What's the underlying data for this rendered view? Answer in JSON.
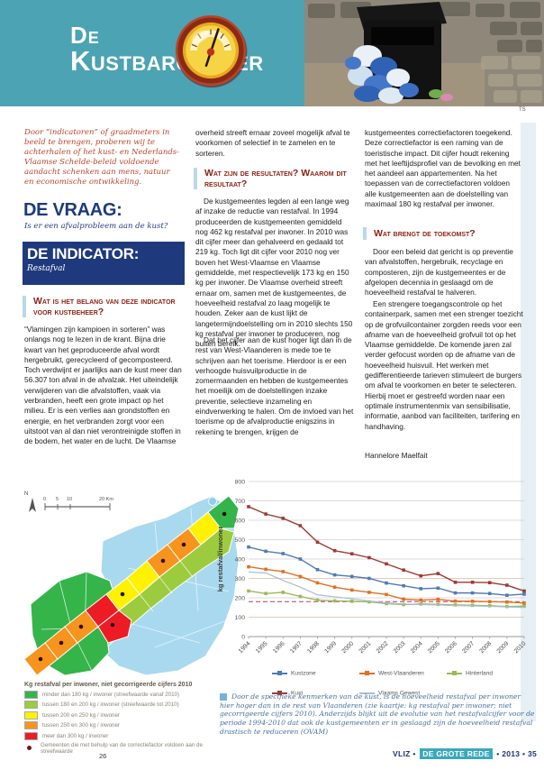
{
  "header": {
    "title_top": "De",
    "title_bottom": "Kustbarometer",
    "teal_color": "#4ba3b3",
    "photo_credit": "TS"
  },
  "intro_text": "Door “indicatoren” of graadmeters in beeld te brengen, proberen wij te achterhalen of het kust- en Nederlands-Vlaamse Schelde-beleid voldoende aandacht schenken aan mens, natuur en economische ontwikkeling.",
  "vraag": {
    "heading": "DE VRAAG:",
    "question": "Is er een afvalprobleem aan de kust?"
  },
  "indicator": {
    "heading": "DE INDICATOR:",
    "value": "Restafval"
  },
  "col1": {
    "section_heading": "Wat is het belang van deze indicator voor kustbeheer?",
    "body": "“Vlamingen zijn kampioen in sorteren” was onlangs nog te lezen in de krant. Bijna drie kwart van het geproduceerde afval wordt hergebruikt, gerecycleerd of gecomposteerd. Toch verdwijnt er jaarlijks aan de kust meer dan 56.307 ton afval in de afvalzak. Het uiteindelijk verwijderen van die afvalstoffen, vaak via verbranden, heeft een grote impact op het milieu. Er is een verlies aan grondstoffen en energie, en het verbranden zorgt voor een uitstoot van al dan niet verontreinigde stoffen in de bodem, het water en de lucht. De Vlaamse"
  },
  "col2": {
    "intro_continuation": "overheid streeft ernaar zoveel mogelijk afval te voorkomen of selectief in te zamelen en te sorteren.",
    "section_heading": "Wat zijn de resultaten? Waarom dit resultaat?",
    "para1": "De kustgemeentes legden al een lange weg af inzake de reductie van restafval. In 1994 produceerden de kustgemeenten gemiddeld nog 462 kg restafval per inwoner. In 2010 was dit cijfer meer dan gehalveerd en gedaald tot 219 kg. Toch ligt dit cijfer voor 2010 nog ver boven het West-Vlaamse en Vlaamse gemiddelde, met respectievelijk 173 kg en 150 kg per inwoner. De Vlaamse overheid streeft ernaar om, samen met de kustgemeentes, de hoeveelheid restafval zo laag mogelijk te houden. Zeker aan de kust lijkt de langetermijndoelstelling om in 2010 slechts 150 kg restafval per inwoner te produceren, nog buiten bereik.",
    "para2": "Dat het cijfer aan de kust hoger ligt dan in de rest van West-Vlaanderen is mede toe te schrijven aan het toerisme. Hierdoor is er een verhoogde huisvuilproductie in de zomermaanden en hebben de kustgemeentes het moeilijk om de doelstellingen inzake preventie, selectieve inzameling en eindverwerking te halen. Om de invloed van het toerisme op de afvalproductie enigszins in rekening te brengen, krijgen de"
  },
  "col3": {
    "para1": "kustgemeentes correctiefactoren toegekend. Deze correctiefactor is een raming van de toeristische impact. Dit cijfer houdt rekening met het leeftijdsprofiel van de bevolking en met het aandeel aan appartementen. Na het toepassen van de correctiefactoren voldoen alle kustgemeenten aan de doelstelling van maximaal 180 kg restafval per inwoner.",
    "section_heading": "Wat brengt de toekomst?",
    "para2": "Door een beleid dat gericht is op preventie van afvalstoffen, hergebruik, recyclage en composteren, zijn de kustgemeentes er de afgelopen decennia in geslaagd om de hoeveelheid restafval te halveren.",
    "para3": "Een strengere toegangscontrole op het containerpark, samen met een strenger toezicht op de grofvuilcontainer zorgden reeds voor een afname van de hoeveelheid grofvuil tot op het Vlaamse gemiddelde. De komende jaren zal verder gefocust worden op de afname van de hoeveelheid huisvuil. Het werken met gedifferentieerde tarieven stimuleert de burgers om afval te voorkomen en beter te selecteren. Hierbij moet er gestreefd worden naar een optimale instrumentenmix van sensibilisatie, informatie, aanbod van faciliteiten, tarifering en handhaving.",
    "author": "Hannelore Maelfait"
  },
  "map": {
    "north_label": "N",
    "scale_ticks": [
      "0",
      "5",
      "10",
      "20 Km"
    ],
    "legend_title": "Kg restafval per inwoner, niet gecorrigeerde cijfers 2010",
    "legend": [
      {
        "color": "#35b44a",
        "label": "minder dan 180 kg / inwoner (streefwaarde vanaf 2010)"
      },
      {
        "color": "#9ccc3d",
        "label": "tussen 180 en 200 kg / inwoner (streefwaarde tot 2010)"
      },
      {
        "color": "#fff200",
        "label": "tussen 200 en 250 kg / inwoner"
      },
      {
        "color": "#f7941e",
        "label": "tussen 250 en 300 kg / inwoner"
      },
      {
        "color": "#ed1c24",
        "label": "meer dan 300 kg / inwoner"
      }
    ],
    "dot_legend": {
      "color": "#7a150d",
      "label": "Gemeenten die met behulp van de correctiefactor voldoen aan de streefwaarde"
    }
  },
  "chart_data": {
    "type": "line",
    "x": [
      "1994",
      "1995",
      "1996",
      "1997",
      "1998",
      "1999",
      "2000",
      "2001",
      "2002",
      "2003",
      "2004",
      "2005",
      "2006",
      "2007",
      "2008",
      "2009",
      "2010"
    ],
    "ylabel": "kg restafval/inwoner",
    "ylim": [
      0,
      800
    ],
    "ytick_step": 100,
    "grid": true,
    "legend_position": "bottom",
    "target_line": {
      "value": 180,
      "color": "#c2517a",
      "style": "dashed"
    },
    "series": [
      {
        "name": "Kustzone",
        "color": "#4f7bb5",
        "marker": true,
        "values": [
          462,
          440,
          428,
          400,
          345,
          318,
          310,
          300,
          276,
          262,
          247,
          250,
          225,
          225,
          222,
          213,
          219
        ]
      },
      {
        "name": "West-Vlaanderen",
        "color": "#e2701f",
        "marker": true,
        "values": [
          360,
          347,
          335,
          310,
          277,
          255,
          240,
          228,
          217,
          193,
          188,
          192,
          183,
          182,
          180,
          178,
          173
        ]
      },
      {
        "name": "Hinterland",
        "color": "#9aba58",
        "marker": true,
        "values": [
          235,
          222,
          228,
          207,
          188,
          184,
          182,
          179,
          170,
          165,
          168,
          166,
          163,
          161,
          159,
          155,
          157
        ]
      },
      {
        "name": "Kust",
        "color": "#9e3a36",
        "marker": true,
        "values": [
          670,
          632,
          610,
          572,
          487,
          443,
          427,
          407,
          375,
          343,
          313,
          325,
          280,
          280,
          278,
          265,
          235
        ]
      },
      {
        "name": "Vlaams Gewest",
        "color": "#aabcd6",
        "marker": false,
        "values": [
          333,
          328,
          290,
          255,
          215,
          205,
          195,
          183,
          174,
          168,
          165,
          163,
          160,
          158,
          156,
          153,
          150
        ]
      }
    ]
  },
  "chart_caption": "Door de specifieke kenmerken van de kust, is de hoeveelheid restafval per inwoner hier hoger dan in de rest van Vlaanderen (zie kaartje: kg restafval per inwoner; niet gecorrigeerde cijfers 2010). Anderzijds blijkt uit de evolutie van het restafvalcijfer voor de periode 1994-2010 dat ook de kustgemeenten er in geslaagd zijn de hoeveelheid restafval drastisch te reduceren (OVAM)",
  "footer": {
    "page_number": "26",
    "journal": "VLIZ",
    "highlight": "DE GROTE REDE",
    "year": "2013",
    "issue": "35",
    "separator": "•"
  }
}
